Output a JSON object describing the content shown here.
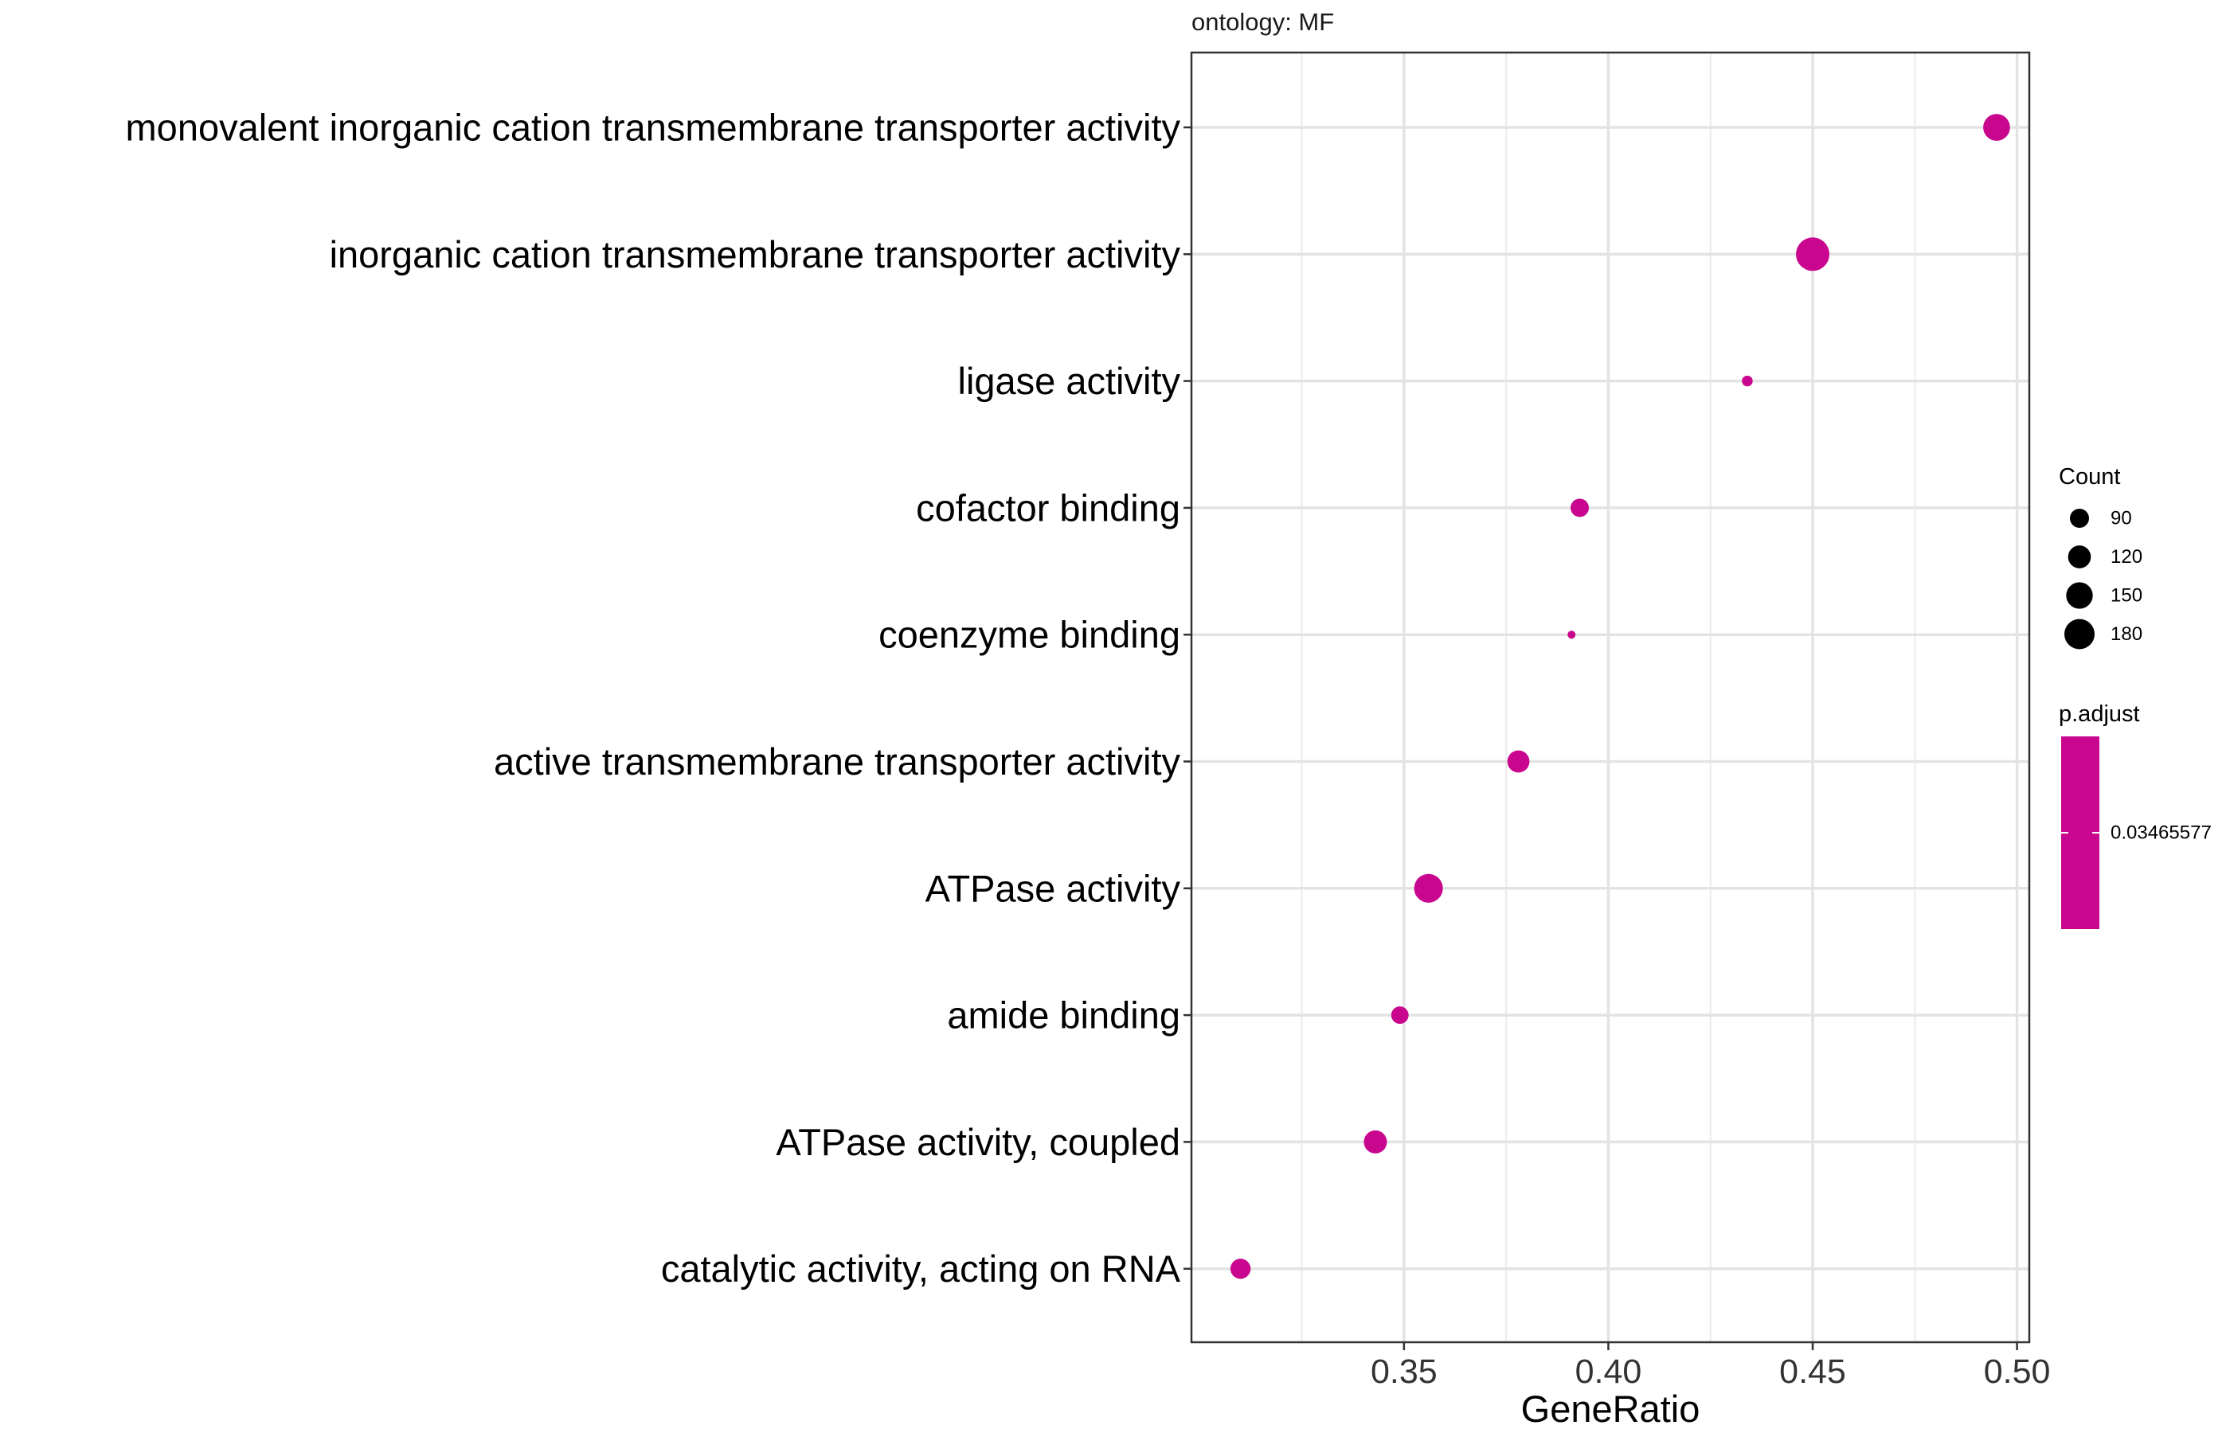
{
  "chart_data": {
    "type": "scatter",
    "facet_title": "ontology: MF",
    "xlabel": "GeneRatio",
    "ylabel": "",
    "xlim": [
      0.298,
      0.503
    ],
    "x_ticks": [
      0.35,
      0.4,
      0.45,
      0.5
    ],
    "x_tick_labels": [
      "0.35",
      "0.40",
      "0.45",
      "0.50"
    ],
    "grid": true,
    "legend_position": "right",
    "point_color": "#C8078E",
    "categories": [
      "monovalent inorganic cation transmembrane transporter activity",
      "inorganic cation transmembrane transporter activity",
      "ligase activity",
      "cofactor binding",
      "coenzyme binding",
      "active transmembrane transporter activity",
      "ATPase activity",
      "amide binding",
      "ATPase activity, coupled",
      "catalytic activity, acting on RNA"
    ],
    "points": [
      {
        "term": "monovalent inorganic cation transmembrane transporter activity",
        "gene_ratio": 0.495,
        "count": 150
      },
      {
        "term": "inorganic cation transmembrane transporter activity",
        "gene_ratio": 0.45,
        "count": 185
      },
      {
        "term": "ligase activity",
        "gene_ratio": 0.434,
        "count": 65
      },
      {
        "term": "cofactor binding",
        "gene_ratio": 0.393,
        "count": 105
      },
      {
        "term": "coenzyme binding",
        "gene_ratio": 0.391,
        "count": 50
      },
      {
        "term": "active transmembrane transporter activity",
        "gene_ratio": 0.378,
        "count": 125
      },
      {
        "term": "ATPase activity",
        "gene_ratio": 0.356,
        "count": 160
      },
      {
        "term": "amide binding",
        "gene_ratio": 0.349,
        "count": 100
      },
      {
        "term": "ATPase activity, coupled",
        "gene_ratio": 0.343,
        "count": 130
      },
      {
        "term": "catalytic activity, acting on RNA",
        "gene_ratio": 0.31,
        "count": 115
      }
    ],
    "size_legend": {
      "title": "Count",
      "values": [
        90,
        120,
        150,
        180
      ],
      "labels": [
        "90",
        "120",
        "150",
        "180"
      ]
    },
    "color_legend": {
      "title": "p.adjust",
      "value_label": "0.03465577",
      "color": "#C8078E"
    }
  }
}
